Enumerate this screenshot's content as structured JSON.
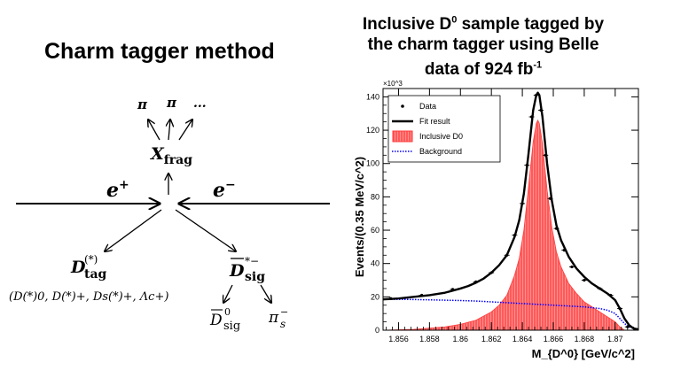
{
  "left": {
    "title": "Charm tagger method",
    "diagram": {
      "pi1": "π",
      "pi2": "π",
      "dots": "...",
      "xfrag_main": "X",
      "xfrag_sub": "frag",
      "eplus_main": "e",
      "eplus_sup": "+",
      "eminus_main": "e",
      "eminus_sup": "−",
      "dtag_main": "D",
      "dtag_sup": "(*)",
      "dtag_sub": "tag",
      "dtag_modes": "(D(*)0, D(*)+, Ds(*)+, Λc+)",
      "dsig_main": "D",
      "dsig_sup": "*−",
      "dsig_sub": "sig",
      "dsig0_main": "D",
      "dsig0_sup": "0",
      "dsig0_sub": "sig",
      "pis_main": "π",
      "pis_sup": "−",
      "pis_sub": "s"
    }
  },
  "chart_title": {
    "line1": "Inclusive D",
    "line1_sup": "0",
    "line1_end": " sample tagged by",
    "line2": "the charm tagger using Belle",
    "line3": "data of 924 fb",
    "line3_sup": "-1"
  },
  "chart_data": {
    "type": "line",
    "title": "",
    "xlabel": "M_{D^0} [GeV/c^2]",
    "ylabel": "Events/(0.35 MeV/c^2)",
    "y_multiplier": "×10^3",
    "xlim": [
      1.855,
      1.8715
    ],
    "ylim": [
      0,
      145
    ],
    "xticks": [
      1.856,
      1.858,
      1.86,
      1.862,
      1.864,
      1.866,
      1.868,
      1.87
    ],
    "xtick_labels": [
      "1.856",
      "1.858",
      "1.86",
      "1.862",
      "1.864",
      "1.866",
      "1.868",
      "1.87"
    ],
    "yticks": [
      0,
      20,
      40,
      60,
      80,
      100,
      120,
      140
    ],
    "ytick_labels": [
      "0",
      "20",
      "40",
      "60",
      "80",
      "100",
      "120",
      "140"
    ],
    "legend": {
      "position": "top-left",
      "entries": [
        {
          "label": "Data",
          "marker": "point",
          "color": "#000000"
        },
        {
          "label": "Fit result",
          "marker": "line",
          "color": "#000000"
        },
        {
          "label": "Inclusive D0",
          "marker": "fill",
          "color": "#ff3b3b"
        },
        {
          "label": "Background",
          "marker": "dotted",
          "color": "#0000ff"
        }
      ]
    },
    "series": [
      {
        "name": "Data",
        "x": [
          1.8555,
          1.8575,
          1.8595,
          1.861,
          1.862,
          1.863,
          1.8635,
          1.864,
          1.8643,
          1.8646,
          1.8649,
          1.8652,
          1.8655,
          1.8658,
          1.8662,
          1.8667,
          1.8672,
          1.868,
          1.869,
          1.8697,
          1.8703,
          1.8708
        ],
        "y": [
          19.0,
          21.0,
          24.5,
          29.0,
          34.5,
          45.0,
          57.0,
          76.0,
          99.0,
          128.0,
          141.0,
          132.0,
          105.0,
          79.0,
          61.0,
          48.0,
          38.0,
          30.0,
          25.0,
          21.0,
          13.0,
          2.0
        ]
      },
      {
        "name": "Fit result",
        "x": [
          1.855,
          1.856,
          1.857,
          1.858,
          1.859,
          1.86,
          1.8605,
          1.861,
          1.8615,
          1.862,
          1.8625,
          1.863,
          1.8635,
          1.8638,
          1.8641,
          1.8644,
          1.8647,
          1.8649,
          1.865,
          1.8651,
          1.8653,
          1.8656,
          1.8659,
          1.8662,
          1.8665,
          1.867,
          1.8675,
          1.868,
          1.8685,
          1.869,
          1.8695,
          1.87,
          1.8703,
          1.8706,
          1.8709,
          1.8712,
          1.8715
        ],
        "y": [
          18.5,
          19.0,
          20.0,
          21.0,
          22.5,
          25.0,
          26.5,
          28.5,
          31.0,
          34.5,
          39.0,
          45.0,
          56.0,
          66.0,
          82.0,
          106.0,
          132.0,
          141.0,
          142.5,
          141.0,
          128.0,
          100.0,
          78.0,
          63.0,
          54.0,
          44.0,
          37.0,
          32.0,
          28.0,
          25.0,
          22.0,
          18.0,
          13.0,
          7.0,
          3.0,
          1.0,
          0.5
        ]
      },
      {
        "name": "Inclusive D0",
        "x": [
          1.855,
          1.857,
          1.859,
          1.86,
          1.861,
          1.862,
          1.8625,
          1.863,
          1.8635,
          1.8638,
          1.8641,
          1.8644,
          1.8647,
          1.8649,
          1.865,
          1.8651,
          1.8653,
          1.8656,
          1.8659,
          1.8662,
          1.8665,
          1.867,
          1.8675,
          1.868,
          1.8685,
          1.869,
          1.8695,
          1.87,
          1.8703,
          1.8706
        ],
        "y": [
          0,
          0.5,
          2.0,
          3.5,
          6.0,
          11.0,
          15.0,
          21.0,
          33.0,
          43.0,
          60.0,
          86.0,
          113.0,
          124.0,
          126.0,
          124.0,
          112.0,
          84.0,
          62.0,
          47.0,
          38.0,
          28.0,
          22.0,
          17.0,
          14.0,
          11.0,
          8.0,
          5.0,
          2.0,
          0
        ]
      },
      {
        "name": "Background",
        "x": [
          1.855,
          1.856,
          1.857,
          1.858,
          1.859,
          1.86,
          1.861,
          1.862,
          1.863,
          1.864,
          1.865,
          1.866,
          1.867,
          1.868,
          1.869,
          1.8695,
          1.87,
          1.8703,
          1.8706,
          1.8709,
          1.8712,
          1.8715
        ],
        "y": [
          18.5,
          18.5,
          18.4,
          18.2,
          18.0,
          17.8,
          17.5,
          17.0,
          16.5,
          16.0,
          15.5,
          15.0,
          14.5,
          14.0,
          13.0,
          12.0,
          10.0,
          7.0,
          4.0,
          2.0,
          1.0,
          0.5
        ]
      }
    ]
  }
}
